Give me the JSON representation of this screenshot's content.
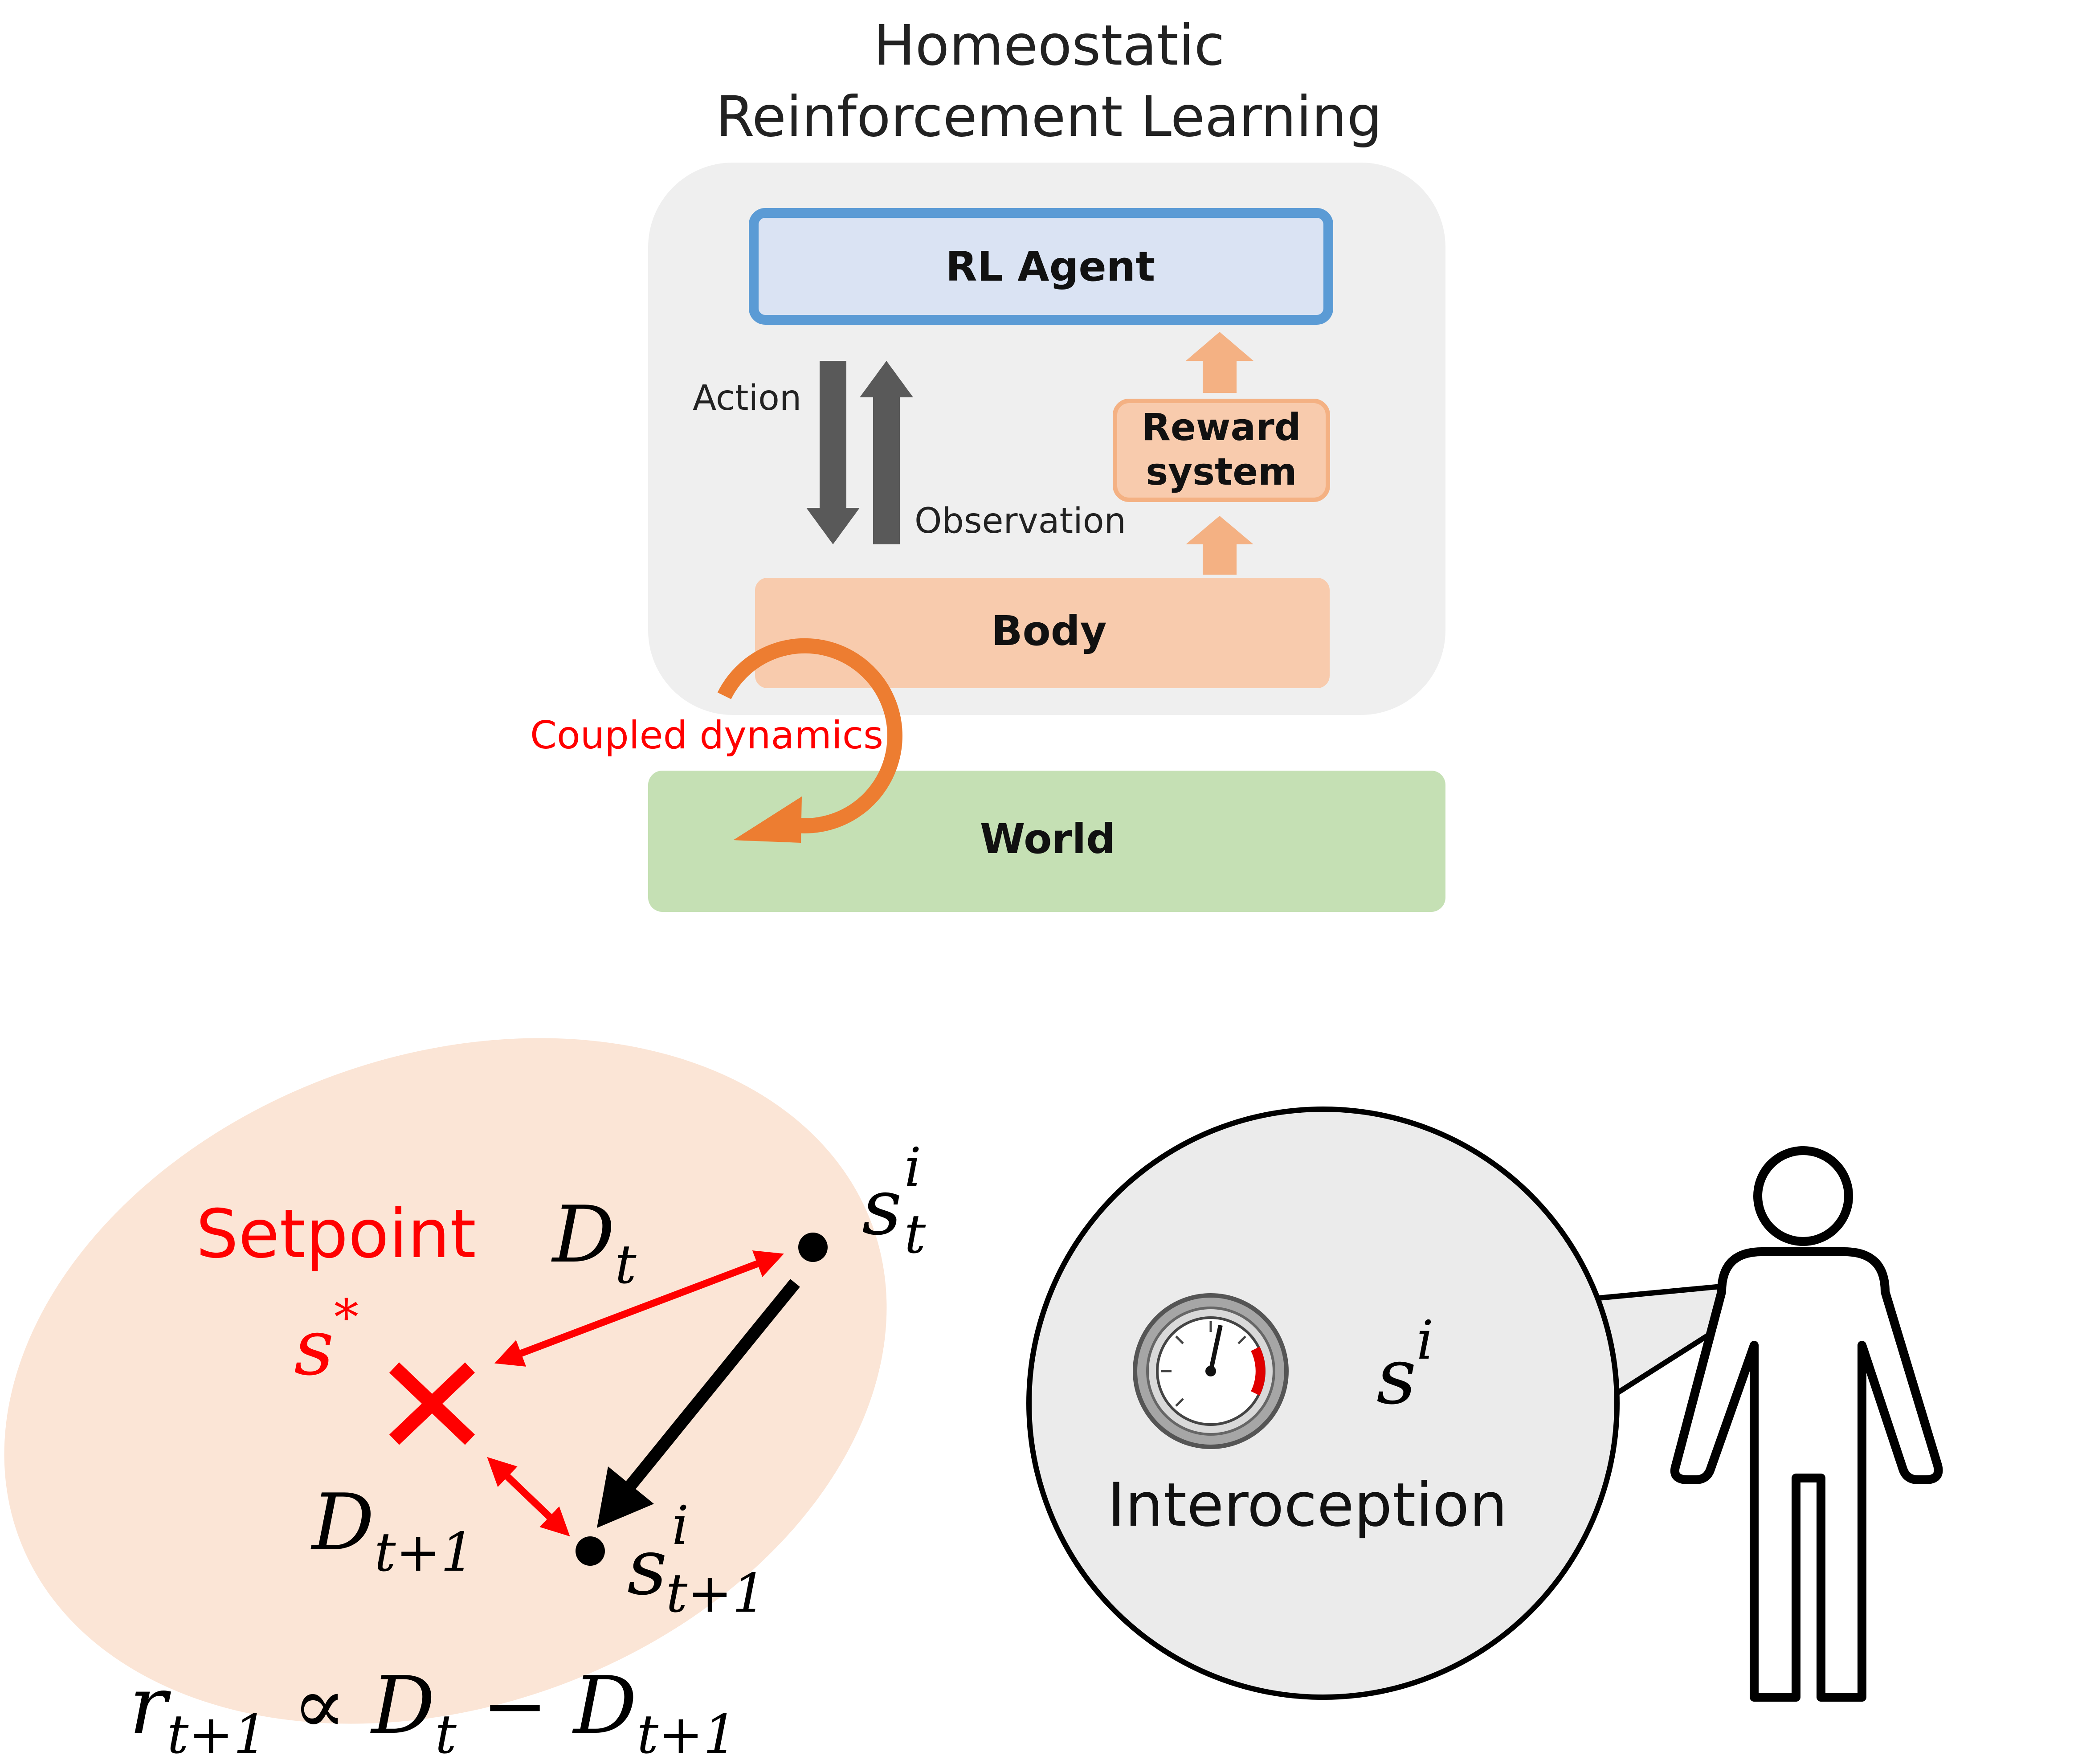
{
  "title": {
    "line1": "Homeostatic",
    "line2": "Reinforcement Learning"
  },
  "boxes": {
    "agent": "RL Agent",
    "reward_line1": "Reward",
    "reward_line2": "system",
    "body": "Body",
    "world": "World"
  },
  "arrows": {
    "action": "Action",
    "observation": "Observation",
    "coupled": "Coupled dynamics"
  },
  "state_space": {
    "setpoint": "Setpoint",
    "s_star": "s",
    "s_star_sup": "*",
    "d_t": "D",
    "d_t_sub": "t",
    "d_t1": "D",
    "d_t1_sub": "t+1",
    "st": "s",
    "st_sup": "i",
    "st_sub": "t",
    "st1": "s",
    "st1_sup": "i",
    "st1_sub": "t+1"
  },
  "formula": {
    "r": "r",
    "r_sub": "t+1",
    "prop": "∝",
    "d1": "D",
    "d1_sub": "t",
    "minus": "−",
    "d2": "D",
    "d2_sub": "t+1"
  },
  "interoception": {
    "label": "Interoception",
    "symbol": "s",
    "symbol_sup": "i",
    "gauge_level": 0.28
  },
  "colors": {
    "panel": "#efefef",
    "agent_fill": "#dae3f3",
    "agent_border": "#5b9bd5",
    "reward_fill": "#f8cbad",
    "body_fill": "#f8cbad",
    "world_fill": "#c5e0b4",
    "orange": "#ed7d31",
    "red": "#ff0000",
    "dark_arrow": "#595959",
    "state_blob": "#fbe5d6",
    "bubble": "#ebebeb"
  },
  "icons": [
    "gauge-icon",
    "person-icon",
    "cross-icon",
    "cycle-arrow-icon"
  ]
}
